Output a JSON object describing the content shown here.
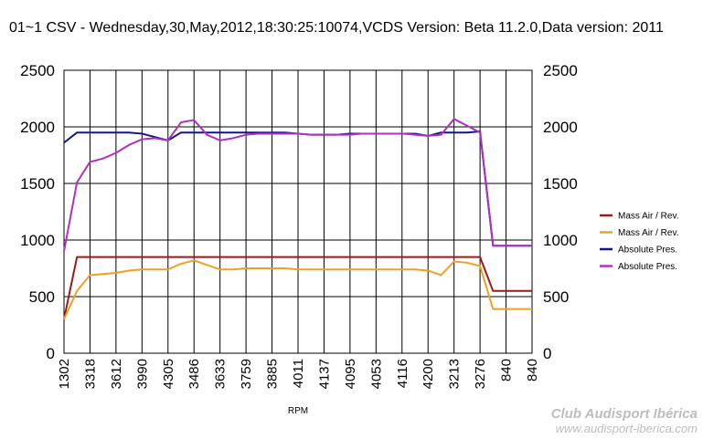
{
  "chart_data": {
    "type": "line",
    "title": "01~1 CSV - Wednesday,30,May,2012,18:30:25:10074,VCDS Version: Beta 11.2.0,Data version: 2011",
    "xlabel": "RPM",
    "ylabel": "",
    "ylim": [
      0,
      2500
    ],
    "yticks": [
      "0",
      "500",
      "1000",
      "1500",
      "2000",
      "2500"
    ],
    "grid": true,
    "legend_position": "right",
    "categories": [
      "1302",
      "3318",
      "3612",
      "3990",
      "4305",
      "3486",
      "3633",
      "3759",
      "3885",
      "4011",
      "4137",
      "4095",
      "4053",
      "4116",
      "4200",
      "3213",
      "3276",
      "840",
      "840"
    ],
    "series": [
      {
        "name": "Mass Air / Rev.",
        "color": "#a01818",
        "x": [
          0,
          0.5,
          1,
          1.5,
          2,
          2.5,
          3,
          3.5,
          4,
          4.5,
          5,
          5.5,
          6,
          6.5,
          7,
          7.5,
          8,
          8.5,
          9,
          9.5,
          10,
          10.5,
          11,
          11.5,
          12,
          12.5,
          13,
          13.5,
          14,
          14.5,
          15,
          15.5,
          16,
          16.5,
          17,
          17.5,
          18
        ],
        "values": [
          300,
          850,
          850,
          850,
          850,
          850,
          850,
          850,
          850,
          850,
          850,
          850,
          850,
          850,
          850,
          850,
          850,
          850,
          850,
          850,
          850,
          850,
          850,
          850,
          850,
          850,
          850,
          850,
          850,
          850,
          850,
          850,
          850,
          550,
          550,
          550,
          550
        ]
      },
      {
        "name": "Mass Air / Rev.",
        "color": "#f0a020",
        "x": [
          0,
          0.5,
          1,
          1.5,
          2,
          2.5,
          3,
          3.5,
          4,
          4.5,
          5,
          5.5,
          6,
          6.5,
          7,
          7.5,
          8,
          8.5,
          9,
          9.5,
          10,
          10.5,
          11,
          11.5,
          12,
          12.5,
          13,
          13.5,
          14,
          14.5,
          15,
          15.5,
          16,
          16.5,
          17,
          17.5,
          18
        ],
        "values": [
          300,
          550,
          690,
          700,
          710,
          730,
          740,
          740,
          740,
          790,
          820,
          780,
          740,
          740,
          750,
          750,
          750,
          750,
          740,
          740,
          740,
          740,
          740,
          740,
          740,
          740,
          740,
          740,
          730,
          690,
          810,
          800,
          770,
          390,
          390,
          390,
          390
        ]
      },
      {
        "name": "Absolute Pres.",
        "color": "#101880",
        "x": [
          0,
          0.5,
          1,
          1.5,
          2,
          2.5,
          3,
          3.5,
          4,
          4.5,
          5,
          5.5,
          6,
          6.5,
          7,
          7.5,
          8,
          8.5,
          9,
          9.5,
          10,
          10.5,
          11,
          11.5,
          12,
          12.5,
          13,
          13.5,
          14,
          14.5,
          15,
          15.5,
          16,
          16.5,
          17,
          17.5,
          18
        ],
        "values": [
          1860,
          1950,
          1950,
          1950,
          1950,
          1950,
          1940,
          1910,
          1880,
          1950,
          1950,
          1950,
          1950,
          1950,
          1950,
          1950,
          1950,
          1950,
          1940,
          1930,
          1930,
          1930,
          1940,
          1940,
          1940,
          1940,
          1940,
          1940,
          1920,
          1950,
          1950,
          1950,
          1960,
          950,
          950,
          950,
          950
        ]
      },
      {
        "name": "Absolute Pres.",
        "color": "#b030c0",
        "x": [
          0,
          0.5,
          1,
          1.5,
          2,
          2.5,
          3,
          3.5,
          4,
          4.5,
          5,
          5.5,
          6,
          6.5,
          7,
          7.5,
          8,
          8.5,
          9,
          9.5,
          10,
          10.5,
          11,
          11.5,
          12,
          12.5,
          13,
          13.5,
          14,
          14.5,
          15,
          15.5,
          16,
          16.5,
          17,
          17.5,
          18
        ],
        "values": [
          900,
          1510,
          1690,
          1720,
          1770,
          1840,
          1890,
          1900,
          1880,
          2040,
          2060,
          1930,
          1880,
          1900,
          1930,
          1940,
          1940,
          1940,
          1940,
          1930,
          1930,
          1930,
          1930,
          1940,
          1940,
          1940,
          1940,
          1930,
          1920,
          1930,
          2070,
          2010,
          1950,
          950,
          950,
          950,
          950
        ]
      }
    ]
  },
  "watermark": {
    "name": "Club Audisport Ibérica",
    "url": "www.audisport-iberica.com"
  }
}
